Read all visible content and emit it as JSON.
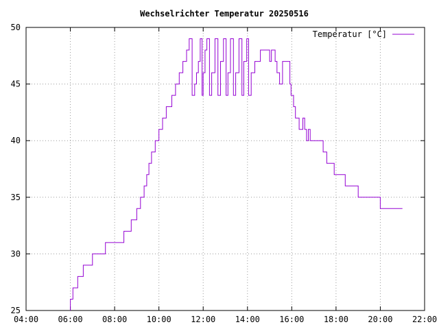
{
  "chart_data": {
    "type": "line",
    "title": "Wechselrichter Temperatur 20250516",
    "xlabel": "",
    "ylabel": "",
    "x_axis_type": "time",
    "xlim": [
      "04:00",
      "22:00"
    ],
    "ylim": [
      25,
      50
    ],
    "x_ticks": [
      "04:00",
      "06:00",
      "08:00",
      "10:00",
      "12:00",
      "14:00",
      "16:00",
      "18:00",
      "20:00",
      "22:00"
    ],
    "y_ticks": [
      25,
      30,
      35,
      40,
      45,
      50
    ],
    "grid": true,
    "legend_position": "top-right",
    "series": [
      {
        "name": "Temperatur [°C]",
        "color": "#9400d3",
        "step": true,
        "points": [
          [
            "06:00",
            25
          ],
          [
            "06:00",
            26
          ],
          [
            "06:07",
            27
          ],
          [
            "06:20",
            28
          ],
          [
            "06:35",
            29
          ],
          [
            "07:00",
            30
          ],
          [
            "07:35",
            31
          ],
          [
            "08:25",
            32
          ],
          [
            "08:45",
            33
          ],
          [
            "09:00",
            34
          ],
          [
            "09:10",
            35
          ],
          [
            "09:20",
            36
          ],
          [
            "09:27",
            37
          ],
          [
            "09:33",
            38
          ],
          [
            "09:40",
            39
          ],
          [
            "09:50",
            40
          ],
          [
            "10:00",
            41
          ],
          [
            "10:10",
            42
          ],
          [
            "10:20",
            43
          ],
          [
            "10:35",
            44
          ],
          [
            "10:45",
            45
          ],
          [
            "10:55",
            46
          ],
          [
            "11:05",
            47
          ],
          [
            "11:15",
            48
          ],
          [
            "11:22",
            49
          ],
          [
            "11:30",
            44
          ],
          [
            "11:37",
            45
          ],
          [
            "11:42",
            46
          ],
          [
            "11:47",
            47
          ],
          [
            "11:52",
            49
          ],
          [
            "11:57",
            44
          ],
          [
            "12:00",
            46
          ],
          [
            "12:05",
            48
          ],
          [
            "12:10",
            49
          ],
          [
            "12:17",
            44
          ],
          [
            "12:23",
            46
          ],
          [
            "12:32",
            49
          ],
          [
            "12:40",
            44
          ],
          [
            "12:47",
            47
          ],
          [
            "12:55",
            49
          ],
          [
            "13:02",
            44
          ],
          [
            "13:07",
            46
          ],
          [
            "13:14",
            49
          ],
          [
            "13:22",
            44
          ],
          [
            "13:28",
            46
          ],
          [
            "13:37",
            49
          ],
          [
            "13:45",
            44
          ],
          [
            "13:50",
            47
          ],
          [
            "13:58",
            49
          ],
          [
            "14:03",
            44
          ],
          [
            "14:10",
            46
          ],
          [
            "14:20",
            47
          ],
          [
            "14:35",
            48
          ],
          [
            "15:00",
            47
          ],
          [
            "15:05",
            48
          ],
          [
            "15:15",
            47
          ],
          [
            "15:20",
            46
          ],
          [
            "15:27",
            45
          ],
          [
            "15:35",
            47
          ],
          [
            "15:55",
            45
          ],
          [
            "15:58",
            44
          ],
          [
            "16:05",
            43
          ],
          [
            "16:10",
            42
          ],
          [
            "16:20",
            41
          ],
          [
            "16:30",
            42
          ],
          [
            "16:35",
            41
          ],
          [
            "16:40",
            40
          ],
          [
            "16:45",
            41
          ],
          [
            "16:50",
            40
          ],
          [
            "17:25",
            39
          ],
          [
            "17:35",
            38
          ],
          [
            "17:55",
            37
          ],
          [
            "18:25",
            36
          ],
          [
            "19:00",
            35
          ],
          [
            "20:00",
            34
          ],
          [
            "21:00",
            34
          ]
        ]
      }
    ]
  }
}
